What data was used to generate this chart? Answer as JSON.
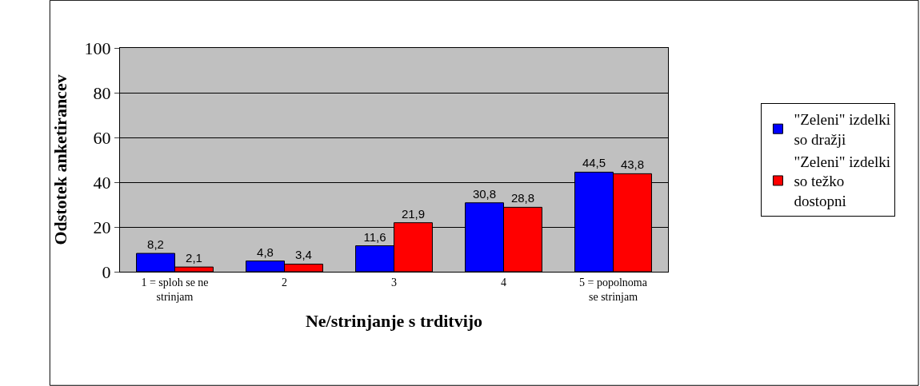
{
  "chart_data": {
    "type": "bar",
    "xlabel": "Ne/strinjanje s trditvijo",
    "ylabel": "Odstotek anketirancev",
    "categories": [
      "1 = sploh se ne strinjam",
      "2",
      "3",
      "4",
      "5 = popolnoma se strinjam"
    ],
    "series": [
      {
        "name": "\"Zeleni\" izdelki so dražji",
        "color": "#0000ff",
        "values": [
          8.2,
          4.8,
          11.6,
          30.8,
          44.5
        ],
        "value_labels": [
          "8,2",
          "4,8",
          "11,6",
          "30,8",
          "44,5"
        ]
      },
      {
        "name": "\"Zeleni\" izdelki so težko dostopni",
        "color": "#ff0000",
        "values": [
          2.1,
          3.4,
          21.9,
          28.8,
          43.8
        ],
        "value_labels": [
          "2,1",
          "3,4",
          "21,9",
          "28,8",
          "43,8"
        ]
      }
    ],
    "ylim": [
      0,
      100
    ],
    "yticks": [
      0,
      20,
      40,
      60,
      80,
      100
    ],
    "grid": "y",
    "legend": "right"
  }
}
